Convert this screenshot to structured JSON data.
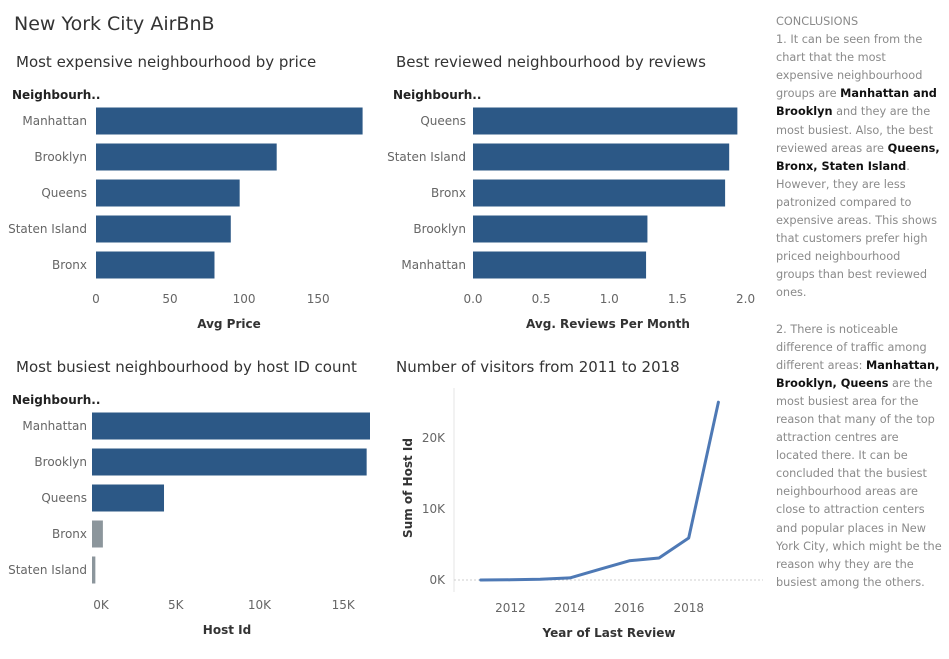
{
  "page": {
    "title": "New York City AirBnB"
  },
  "conclusions": {
    "heading": "CONCLUSIONS",
    "p1_a": "1. It can be seen from the chart that the most expensive neighbourhood groups are ",
    "p1_b": "Manhattan and Brooklyn",
    "p1_c": " and they are the most busiest. Also, the best reviewed areas are ",
    "p1_d": "Queens, Bronx, Staten Island",
    "p1_e": ". However, they are less patronized compared to expensive areas. This shows that customers prefer high priced neighbourhood groups than best reviewed ones.",
    "p2_a": "2. There is noticeable difference of traffic among different areas: ",
    "p2_b": "Manhattan, Brooklyn, Queens",
    "p2_c": " are the most busiest area for the reason that many of the top attraction centres are located there. It can be concluded that the busiest neighbourhood areas are close to attraction centers and popular places in New York City, which might be the reason why they are the busiest among the others."
  },
  "colors": {
    "bar": "#2c5886",
    "bar_muted": "#8c969c",
    "line": "#4e79b5",
    "axis_text": "#666666"
  },
  "chart_data": [
    {
      "type": "bar",
      "title": "Most expensive neighbourhood by price",
      "row_header": "Neighbourh..",
      "categories": [
        "Manhattan",
        "Brooklyn",
        "Queens",
        "Staten Island",
        "Bronx"
      ],
      "values": [
        180,
        122,
        97,
        91,
        80
      ],
      "xlabel": "Avg Price",
      "xlim": [
        0,
        185
      ],
      "xticks": [
        "0",
        "50",
        "100",
        "150"
      ]
    },
    {
      "type": "bar",
      "title": "Best reviewed neighbourhood by reviews",
      "row_header": "Neighbourh..",
      "categories": [
        "Queens",
        "Staten Island",
        "Bronx",
        "Brooklyn",
        "Manhattan"
      ],
      "values": [
        1.94,
        1.88,
        1.85,
        1.28,
        1.27
      ],
      "xlabel": "Avg. Reviews Per Month",
      "xlim": [
        0,
        2.04
      ],
      "xticks": [
        "0.0",
        "0.5",
        "1.0",
        "1.5",
        "2.0"
      ]
    },
    {
      "type": "bar",
      "title": "Most busiest neighbourhood  by host ID count",
      "row_header": "Neighbourh..",
      "categories": [
        "Manhattan",
        "Brooklyn",
        "Queens",
        "Bronx",
        "Staten Island"
      ],
      "values": [
        16600,
        16400,
        4300,
        650,
        200
      ],
      "muted": [
        false,
        false,
        false,
        true,
        true
      ],
      "xlabel": "Host Id",
      "xlim": [
        0,
        16600
      ],
      "xticks": [
        "0K",
        "5K",
        "10K",
        "15K"
      ]
    },
    {
      "type": "line",
      "title": "Number of visitors from 2011 to 2018",
      "x": [
        2011,
        2012,
        2013,
        2014,
        2015,
        2016,
        2017,
        2018,
        2019
      ],
      "y": [
        0,
        30,
        100,
        300,
        1500,
        2700,
        3100,
        5900,
        25000
      ],
      "xlabel": "Year of Last Review",
      "ylabel": "Sum of Host Id",
      "xticks": [
        "2012",
        "2014",
        "2016",
        "2018"
      ],
      "yticks": [
        "0K",
        "10K",
        "20K"
      ],
      "xlim": [
        2010.1,
        2020.5
      ],
      "ylim": [
        0,
        27000
      ]
    }
  ]
}
